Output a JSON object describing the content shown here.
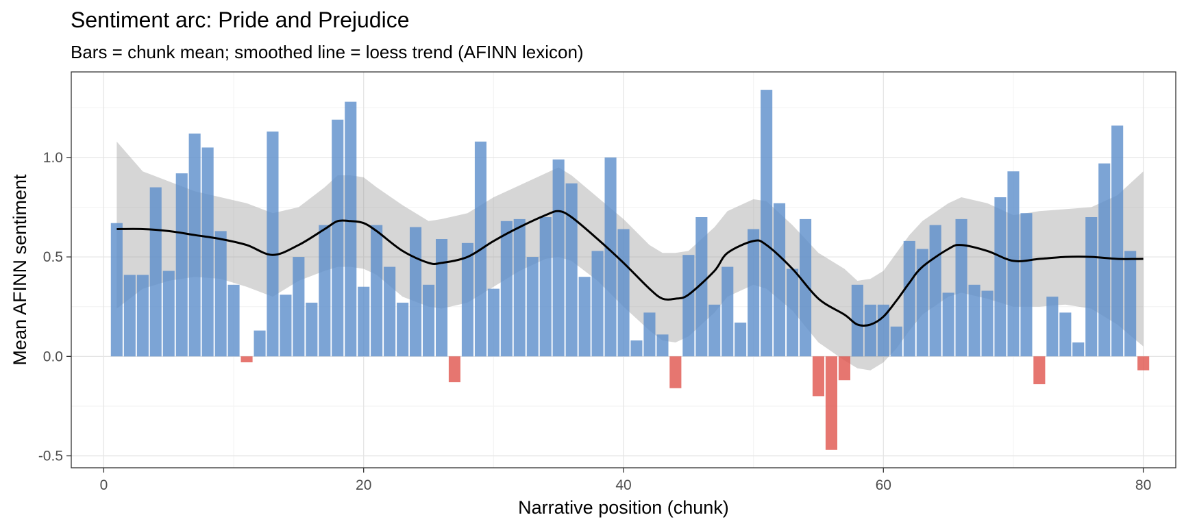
{
  "chart_data": {
    "type": "bar",
    "title": "Sentiment arc: Pride and Prejudice",
    "subtitle": "Bars = chunk mean; smoothed line = loess trend (AFINN lexicon)",
    "xlabel": "Narrative position (chunk)",
    "ylabel": "Mean AFINN sentiment",
    "xlim": [
      -2.5,
      82.5
    ],
    "ylim": [
      -0.56,
      1.43
    ],
    "x_ticks": [
      0,
      20,
      40,
      60,
      80
    ],
    "x_tick_labels": [
      "0",
      "20",
      "40",
      "60",
      "80"
    ],
    "y_ticks": [
      -0.5,
      0.0,
      0.5,
      1.0
    ],
    "y_tick_labels": [
      "-0.5",
      "0.0",
      "0.5",
      "1.0"
    ],
    "grid": true,
    "colors": {
      "positive": "#5B8DCB",
      "negative": "#E0544C",
      "trend_line": "#000000",
      "confidence_band": "#999999"
    },
    "x": [
      1,
      2,
      3,
      4,
      5,
      6,
      7,
      8,
      9,
      10,
      11,
      12,
      13,
      14,
      15,
      16,
      17,
      18,
      19,
      20,
      21,
      22,
      23,
      24,
      25,
      26,
      27,
      28,
      29,
      30,
      31,
      32,
      33,
      34,
      35,
      36,
      37,
      38,
      39,
      40,
      41,
      42,
      43,
      44,
      45,
      46,
      47,
      48,
      49,
      50,
      51,
      52,
      53,
      54,
      55,
      56,
      57,
      58,
      59,
      60,
      61,
      62,
      63,
      64,
      65,
      66,
      67,
      68,
      69,
      70,
      71,
      72,
      73,
      74,
      75,
      76,
      77,
      78,
      79,
      80
    ],
    "values": [
      0.67,
      0.41,
      0.41,
      0.85,
      0.43,
      0.92,
      1.12,
      1.05,
      0.63,
      0.36,
      -0.03,
      0.13,
      1.13,
      0.31,
      0.5,
      0.27,
      0.66,
      1.19,
      1.28,
      0.35,
      0.66,
      0.45,
      0.27,
      0.65,
      0.36,
      0.59,
      -0.13,
      0.57,
      1.08,
      0.34,
      0.68,
      0.69,
      0.5,
      0.7,
      0.99,
      0.87,
      0.4,
      0.53,
      1.0,
      0.64,
      0.08,
      0.22,
      0.11,
      -0.16,
      0.51,
      0.7,
      0.26,
      0.45,
      0.17,
      0.64,
      1.34,
      0.77,
      0.44,
      0.69,
      -0.2,
      -0.47,
      -0.12,
      0.36,
      0.26,
      0.26,
      0.15,
      0.58,
      0.54,
      0.66,
      0.32,
      0.69,
      0.36,
      0.33,
      0.8,
      0.93,
      0.72,
      -0.14,
      0.3,
      0.22,
      0.07,
      0.7,
      0.97,
      1.16,
      0.53,
      -0.07
    ],
    "series": [
      {
        "name": "loess trend",
        "type": "line",
        "x": [
          1,
          3,
          5,
          7,
          9,
          11,
          13,
          15,
          17,
          18,
          19,
          20,
          21,
          23,
          25,
          26,
          28,
          30,
          32,
          34,
          35,
          36,
          38,
          40,
          42,
          43,
          44,
          45,
          47,
          48,
          50,
          51,
          53,
          55,
          57,
          58,
          59,
          60,
          61,
          62,
          63,
          65,
          66,
          68,
          70,
          72,
          74,
          76,
          78,
          80
        ],
        "y": [
          0.64,
          0.64,
          0.63,
          0.61,
          0.59,
          0.56,
          0.51,
          0.56,
          0.64,
          0.68,
          0.68,
          0.67,
          0.63,
          0.53,
          0.47,
          0.47,
          0.5,
          0.58,
          0.65,
          0.71,
          0.73,
          0.7,
          0.59,
          0.47,
          0.34,
          0.29,
          0.29,
          0.31,
          0.43,
          0.52,
          0.58,
          0.56,
          0.44,
          0.29,
          0.21,
          0.16,
          0.16,
          0.2,
          0.28,
          0.37,
          0.45,
          0.54,
          0.56,
          0.53,
          0.48,
          0.49,
          0.5,
          0.5,
          0.49,
          0.49
        ],
        "lower": [
          0.24,
          0.34,
          0.38,
          0.4,
          0.39,
          0.35,
          0.3,
          0.38,
          0.43,
          0.45,
          0.45,
          0.44,
          0.41,
          0.3,
          0.25,
          0.24,
          0.27,
          0.35,
          0.43,
          0.49,
          0.5,
          0.48,
          0.38,
          0.25,
          0.13,
          0.08,
          0.07,
          0.1,
          0.22,
          0.3,
          0.36,
          0.34,
          0.23,
          0.07,
          -0.02,
          -0.06,
          -0.07,
          -0.03,
          0.04,
          0.13,
          0.21,
          0.3,
          0.32,
          0.29,
          0.25,
          0.25,
          0.26,
          0.24,
          0.16,
          0.05
        ],
        "upper": [
          1.08,
          0.93,
          0.88,
          0.83,
          0.8,
          0.77,
          0.72,
          0.75,
          0.85,
          0.91,
          0.91,
          0.9,
          0.85,
          0.76,
          0.68,
          0.69,
          0.72,
          0.8,
          0.86,
          0.92,
          0.95,
          0.91,
          0.8,
          0.69,
          0.56,
          0.52,
          0.52,
          0.53,
          0.65,
          0.73,
          0.79,
          0.78,
          0.66,
          0.52,
          0.44,
          0.38,
          0.39,
          0.43,
          0.52,
          0.61,
          0.68,
          0.77,
          0.8,
          0.77,
          0.71,
          0.73,
          0.74,
          0.75,
          0.81,
          0.93
        ]
      }
    ]
  }
}
